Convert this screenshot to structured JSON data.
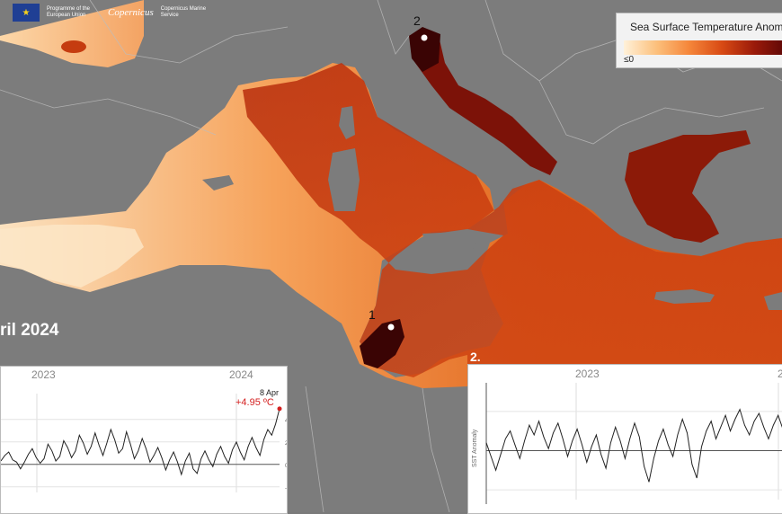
{
  "logos": {
    "eu_flag": "eu-flag-icon",
    "eu_text": "Programme of the European Union",
    "copernicus": "Copernicus",
    "cms_text": "Copernicus Marine Service"
  },
  "legend": {
    "title": "Sea Surface Temperature Anom",
    "min_label": "≤0",
    "colors": [
      "#fff1d9",
      "#fcc07c",
      "#f5863a",
      "#d84a14",
      "#9a1a0a",
      "#5a0606"
    ]
  },
  "date_label": "ril 2024",
  "markers": [
    {
      "label": "1"
    },
    {
      "label": "2"
    }
  ],
  "chart_data": [
    {
      "type": "line",
      "panel": "1",
      "years": [
        "2023",
        "2024"
      ],
      "annotation": {
        "date": "8 Apr",
        "value": "+4.95 ºC"
      },
      "yticks": [
        "4",
        "2",
        "0",
        "-2"
      ],
      "ylim": [
        -2.5,
        5.5
      ],
      "series": [
        {
          "values": [
            0.3,
            0.8,
            1.1,
            0.4,
            0.2,
            -0.4,
            0.2,
            0.9,
            1.4,
            0.6,
            0.1,
            0.5,
            1.8,
            1.2,
            0.3,
            0.7,
            2.1,
            1.5,
            0.6,
            1.2,
            2.6,
            1.9,
            0.9,
            1.6,
            2.8,
            1.7,
            0.8,
            1.9,
            3.1,
            2.2,
            1.0,
            1.4,
            2.9,
            1.8,
            0.5,
            1.2,
            2.3,
            1.4,
            0.2,
            0.8,
            1.5,
            0.6,
            -0.5,
            0.4,
            1.1,
            0.2,
            -0.9,
            0.3,
            1.0,
            -0.4,
            -0.8,
            0.5,
            1.2,
            0.4,
            -0.2,
            0.9,
            1.6,
            0.7,
            0.1,
            1.3,
            2.0,
            1.1,
            0.4,
            1.6,
            2.4,
            1.5,
            0.8,
            2.2,
            3.1,
            2.6,
            3.6,
            4.95
          ]
        }
      ]
    },
    {
      "type": "line",
      "panel": "2",
      "years": [
        "2023",
        "2"
      ],
      "ylabel": "SST Anomaly",
      "series": [
        {
          "values": [
            0.4,
            -0.3,
            -1.0,
            -0.2,
            0.6,
            1.0,
            0.3,
            -0.4,
            0.5,
            1.3,
            0.8,
            1.5,
            0.7,
            0.1,
            0.9,
            1.4,
            0.6,
            -0.3,
            0.5,
            1.1,
            0.3,
            -0.6,
            0.2,
            0.8,
            -0.2,
            -0.9,
            0.4,
            1.2,
            0.5,
            -0.4,
            0.6,
            1.4,
            0.7,
            -0.8,
            -1.6,
            -0.4,
            0.5,
            1.1,
            0.3,
            -0.3,
            0.8,
            1.6,
            0.9,
            -0.7,
            -1.4,
            0.2,
            1.0,
            1.5,
            0.6,
            1.2,
            1.8,
            1.0,
            1.6,
            2.1,
            1.3,
            0.8,
            1.5,
            1.9,
            1.2,
            0.6,
            1.3,
            1.8,
            1.1
          ]
        }
      ]
    }
  ]
}
